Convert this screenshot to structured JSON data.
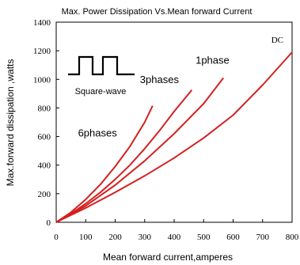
{
  "chart_data": {
    "type": "line",
    "title": "Max. Power Dissipation Vs.Mean forward Current",
    "xlabel": "Mean forward current,amperes",
    "ylabel": "Max.forward dissipation ,watts",
    "xlim": [
      0,
      800
    ],
    "ylim": [
      0,
      1400
    ],
    "xticks": [
      0,
      100,
      200,
      300,
      400,
      500,
      600,
      700,
      800
    ],
    "yticks": [
      0,
      200,
      400,
      600,
      800,
      1000,
      1200,
      1400
    ],
    "xtick_labels": [
      "0",
      "100",
      "200",
      "300",
      "400",
      "500",
      "600",
      "700",
      "800"
    ],
    "ytick_labels": [
      "0",
      "200",
      "400",
      "600",
      "800",
      "1000",
      "1200",
      "1400"
    ],
    "grid": false,
    "line_color": "#d42020",
    "series": [
      {
        "name": "6phases",
        "label_at": [
          140,
          600
        ],
        "x": [
          0,
          50,
          100,
          150,
          200,
          250,
          300,
          327
        ],
        "y": [
          0,
          70,
          160,
          265,
          390,
          530,
          700,
          815
        ]
      },
      {
        "name": "3phases",
        "label_at": [
          350,
          975
        ],
        "x": [
          0,
          50,
          100,
          150,
          200,
          250,
          300,
          350,
          400,
          460
        ],
        "y": [
          0,
          60,
          130,
          210,
          300,
          400,
          515,
          640,
          775,
          925
        ]
      },
      {
        "name": "1phase",
        "label_at": [
          530,
          1110
        ],
        "x": [
          0,
          100,
          200,
          300,
          400,
          500,
          567
        ],
        "y": [
          0,
          115,
          260,
          430,
          620,
          830,
          1010
        ]
      },
      {
        "name": "DC",
        "label_at": [
          750,
          1255
        ],
        "x": [
          0,
          100,
          200,
          300,
          400,
          500,
          600,
          700,
          800
        ],
        "y": [
          0,
          100,
          210,
          325,
          450,
          590,
          750,
          960,
          1190
        ]
      }
    ],
    "inset": {
      "label": "Square-wave",
      "icon": "square-wave-icon"
    }
  }
}
